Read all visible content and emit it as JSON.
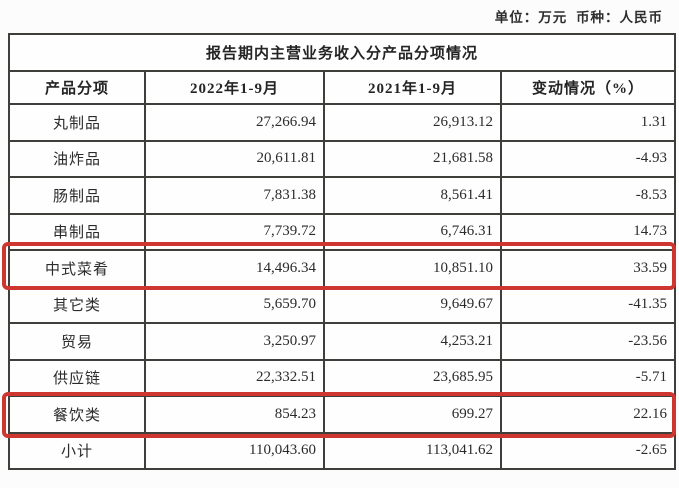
{
  "page": {
    "unit_label": "单位：万元  币种：人民币"
  },
  "table": {
    "title": "报告期内主营业务收入分产品分项情况",
    "columns": [
      "产品分项",
      "2022年1-9月",
      "2021年1-9月",
      "变动情况（%）"
    ],
    "rows": [
      {
        "cells": [
          "丸制品",
          "27,266.94",
          "26,913.12",
          "1.31"
        ],
        "highlighted": false
      },
      {
        "cells": [
          "油炸品",
          "20,611.81",
          "21,681.58",
          "-4.93"
        ],
        "highlighted": false
      },
      {
        "cells": [
          "肠制品",
          "7,831.38",
          "8,561.41",
          "-8.53"
        ],
        "highlighted": false
      },
      {
        "cells": [
          "串制品",
          "7,739.72",
          "6,746.31",
          "14.73"
        ],
        "highlighted": false
      },
      {
        "cells": [
          "中式菜肴",
          "14,496.34",
          "10,851.10",
          "33.59"
        ],
        "highlighted": true
      },
      {
        "cells": [
          "其它类",
          "5,659.70",
          "9,649.67",
          "-41.35"
        ],
        "highlighted": false
      },
      {
        "cells": [
          "贸易",
          "3,250.97",
          "4,253.21",
          "-23.56"
        ],
        "highlighted": false
      },
      {
        "cells": [
          "供应链",
          "22,332.51",
          "23,685.95",
          "-5.71"
        ],
        "highlighted": false
      },
      {
        "cells": [
          "餐饮类",
          "854.23",
          "699.27",
          "22.16"
        ],
        "highlighted": true
      },
      {
        "cells": [
          "小计",
          "110,043.60",
          "113,041.62",
          "-2.65"
        ],
        "highlighted": false
      }
    ],
    "highlight_color": "#ce3730",
    "border_color": "#3e3e3a"
  }
}
